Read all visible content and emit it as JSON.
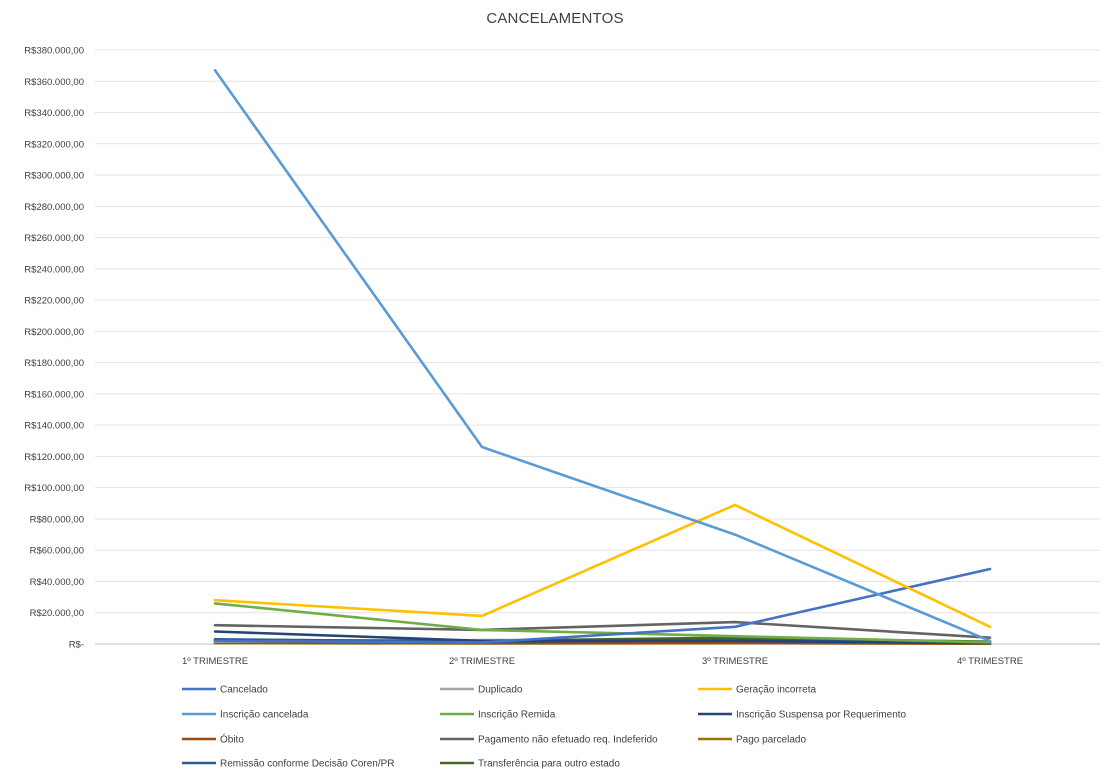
{
  "chart_data": {
    "type": "line",
    "title": "CANCELAMENTOS",
    "xlabel": "",
    "ylabel": "",
    "categories": [
      "1º TRIMESTRE",
      "2º TRIMESTRE",
      "3º TRIMESTRE",
      "4º TRIMESTRE"
    ],
    "ylim": [
      0,
      380000
    ],
    "ytick_values": [
      0,
      20000,
      40000,
      60000,
      80000,
      100000,
      120000,
      140000,
      160000,
      180000,
      200000,
      220000,
      240000,
      260000,
      280000,
      300000,
      320000,
      340000,
      360000,
      380000
    ],
    "ytick_labels": [
      "R$-",
      "R$20.000,00",
      "R$40.000,00",
      "R$60.000,00",
      "R$80.000,00",
      "R$100.000,00",
      "R$120.000,00",
      "R$140.000,00",
      "R$160.000,00",
      "R$180.000,00",
      "R$200.000,00",
      "R$220.000,00",
      "R$240.000,00",
      "R$260.000,00",
      "R$280.000,00",
      "R$300.000,00",
      "R$320.000,00",
      "R$340.000,00",
      "R$360.000,00",
      "R$380.000,00"
    ],
    "grid": true,
    "legend_position": "bottom",
    "series": [
      {
        "name": "Cancelado",
        "color": "#4472C4",
        "values": [
          2000,
          1000,
          11000,
          48000
        ]
      },
      {
        "name": "Duplicado",
        "color": "#A5A5A5",
        "values": [
          1500,
          2500,
          3000,
          1000
        ]
      },
      {
        "name": "Geração incorreta",
        "color": "#FFC000",
        "values": [
          28000,
          18000,
          89000,
          11000
        ]
      },
      {
        "name": "Inscrição cancelada",
        "color": "#5B9BD5",
        "values": [
          367000,
          126000,
          70000,
          2000
        ]
      },
      {
        "name": "Inscrição Remida",
        "color": "#70AD47",
        "values": [
          26000,
          9000,
          5000,
          1000
        ]
      },
      {
        "name": "Inscrição Suspensa por Requerimento",
        "color": "#264478",
        "values": [
          8000,
          2000,
          2000,
          500
        ]
      },
      {
        "name": "Óbito",
        "color": "#9E480E",
        "values": [
          1000,
          500,
          500,
          300
        ]
      },
      {
        "name": "Pagamento não efetuado req. Indeferido",
        "color": "#636363",
        "values": [
          12000,
          9000,
          14000,
          4000
        ]
      },
      {
        "name": "Pago parcelado",
        "color": "#997300",
        "values": [
          500,
          300,
          500,
          200
        ]
      },
      {
        "name": "Remissão conforme Decisão Coren/PR",
        "color": "#255E91",
        "values": [
          3000,
          1500,
          2500,
          1000
        ]
      },
      {
        "name": "Transferência para outro estado",
        "color": "#43682B",
        "values": [
          2500,
          2000,
          4000,
          1500
        ]
      }
    ]
  }
}
